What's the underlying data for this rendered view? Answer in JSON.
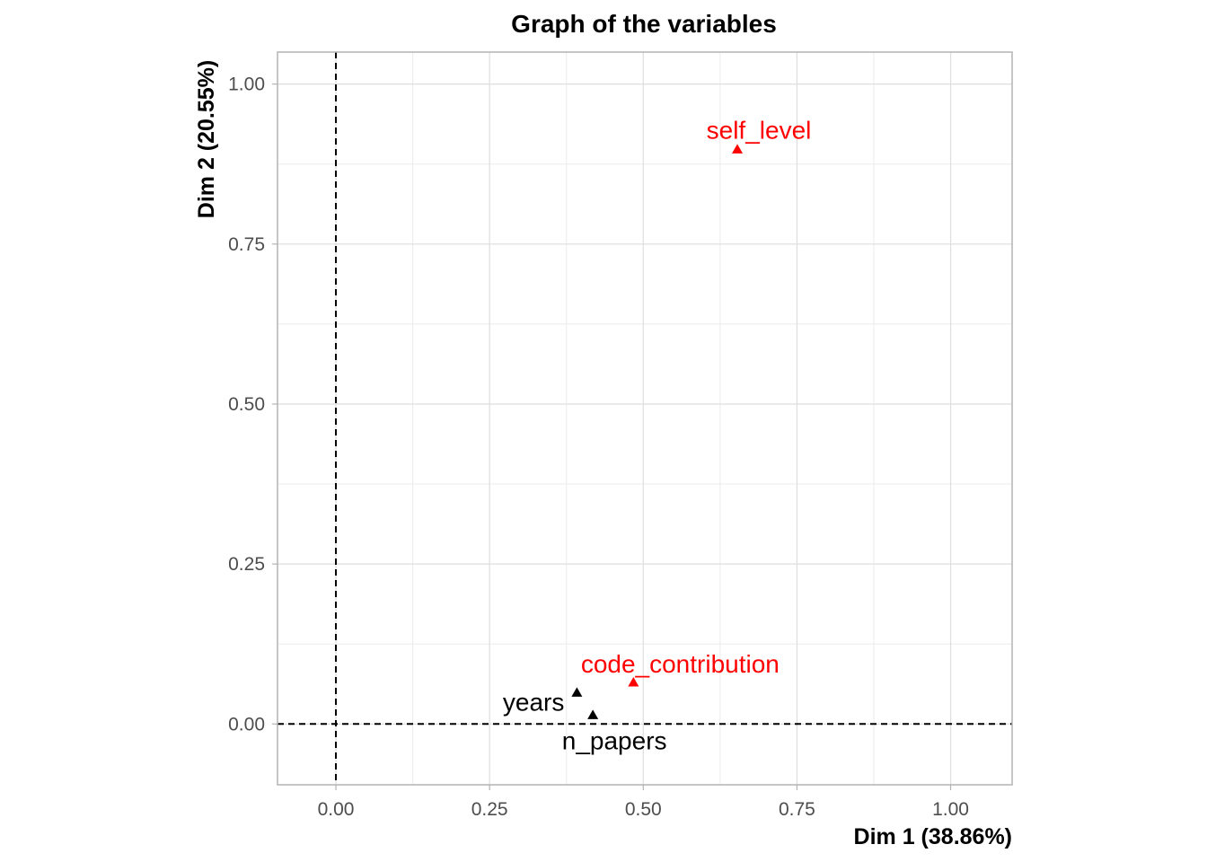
{
  "chart_data": {
    "type": "scatter",
    "title": "Graph of the variables",
    "xlabel": "Dim 1 (38.86%)",
    "ylabel": "Dim 2 (20.55%)",
    "xlim": [
      -0.095,
      1.1
    ],
    "ylim": [
      -0.095,
      1.05
    ],
    "x_ticks": [
      0.0,
      0.25,
      0.5,
      0.75,
      1.0
    ],
    "x_tick_labels": [
      "0.00",
      "0.25",
      "0.50",
      "0.75",
      "1.00"
    ],
    "y_ticks": [
      0.0,
      0.25,
      0.5,
      0.75,
      1.0
    ],
    "y_tick_labels": [
      "0.00",
      "0.25",
      "0.50",
      "0.75",
      "1.00"
    ],
    "grid": true,
    "reference_lines": {
      "x": 0,
      "y": 0,
      "style": "dashed"
    },
    "points": [
      {
        "label": "self_level",
        "x": 0.653,
        "y": 0.898,
        "color": "#ff0000"
      },
      {
        "label": "code_contribution",
        "x": 0.484,
        "y": 0.065,
        "color": "#ff0000"
      },
      {
        "label": "years",
        "x": 0.392,
        "y": 0.049,
        "color": "#000000"
      },
      {
        "label": "n_papers",
        "x": 0.418,
        "y": 0.014,
        "color": "#000000"
      }
    ]
  }
}
